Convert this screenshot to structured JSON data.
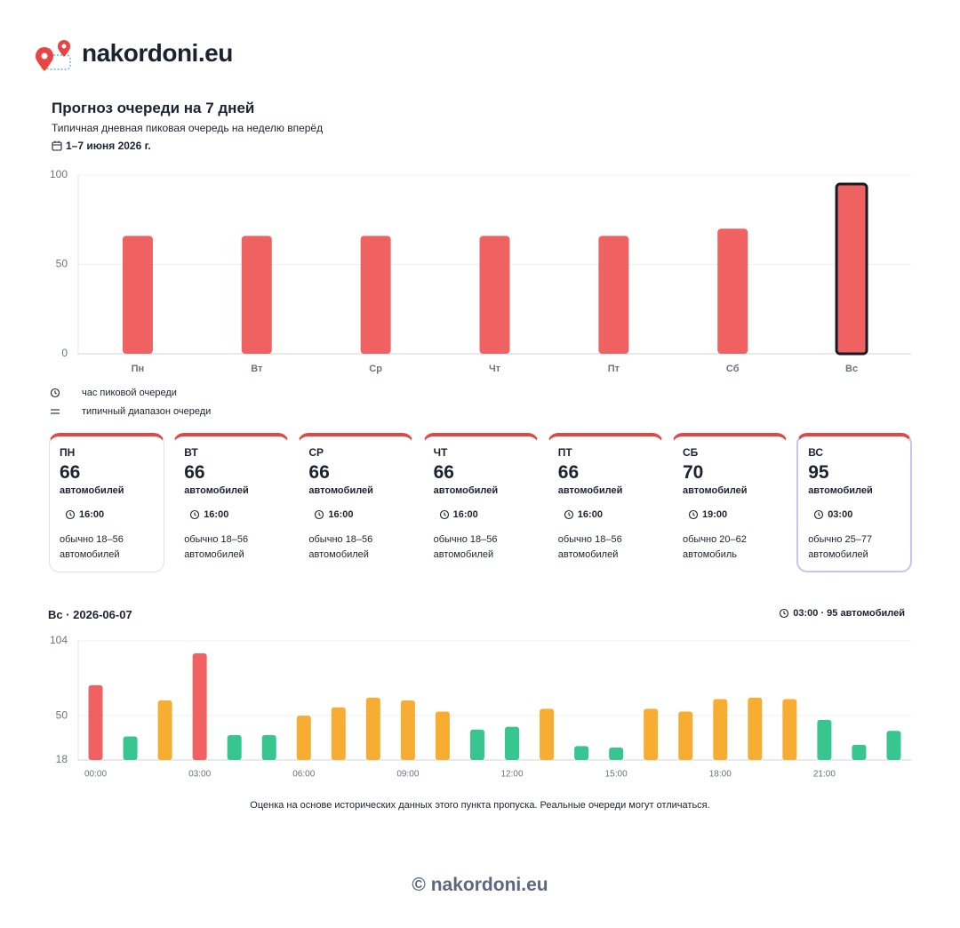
{
  "header": {
    "brand": "nakordoni.eu"
  },
  "chart_data": [
    {
      "type": "bar",
      "title": "Прогноз очереди на 7 дней",
      "subtitle": "Типичная дневная пиковая очередь на неделю вперёд",
      "date": "1–7 июня 2026 г.",
      "categories": [
        "Пн",
        "Вт",
        "Ср",
        "Чт",
        "Пт",
        "Сб",
        "Вс"
      ],
      "values": [
        66,
        66,
        66,
        66,
        66,
        70,
        95
      ],
      "color": "#f06262",
      "highlight": 6,
      "ylim": [
        0,
        100
      ],
      "yticks": [
        0,
        50,
        100
      ],
      "grid": true
    },
    {
      "type": "bar",
      "title": "Вс · 2026-06-07",
      "annotation": "03:00 · 95 автомобилей",
      "categories": [
        "00:00",
        null,
        null,
        "03:00",
        null,
        null,
        "06:00",
        null,
        null,
        "09:00",
        null,
        null,
        "12:00",
        null,
        null,
        "15:00",
        null,
        null,
        "18:00",
        null,
        null,
        "21:00",
        null,
        null
      ],
      "values": [
        72,
        35,
        61,
        95,
        36,
        36,
        50,
        56,
        63,
        61,
        53,
        40,
        42,
        55,
        28,
        27,
        55,
        53,
        62,
        63,
        62,
        47,
        29,
        39
      ],
      "colors": [
        "#f06262",
        "#37c68f",
        "#f7ad32",
        "#f06262",
        "#37c68f",
        "#37c68f",
        "#f7ad32",
        "#f7ad32",
        "#f7ad32",
        "#f7ad32",
        "#f7ad32",
        "#37c68f",
        "#37c68f",
        "#f7ad32",
        "#37c68f",
        "#37c68f",
        "#f7ad32",
        "#f7ad32",
        "#f7ad32",
        "#f7ad32",
        "#f7ad32",
        "#37c68f",
        "#37c68f",
        "#37c68f"
      ],
      "ylim": [
        18,
        104
      ],
      "yticks": [
        18,
        50,
        104
      ],
      "grid": true
    }
  ],
  "legend": {
    "peak_hour": "час пиковой очереди",
    "range": "типичный диапазон очереди"
  },
  "cards": [
    {
      "day": "ПН",
      "value": 66,
      "unit": "автомобилей",
      "time": "16:00",
      "range": "обычно 18–56 автомобилей"
    },
    {
      "day": "ВТ",
      "value": 66,
      "unit": "автомобилей",
      "time": "16:00",
      "range": "обычно 18–56 автомобилей"
    },
    {
      "day": "СР",
      "value": 66,
      "unit": "автомобилей",
      "time": "16:00",
      "range": "обычно 18–56 автомобилей"
    },
    {
      "day": "ЧТ",
      "value": 66,
      "unit": "автомобилей",
      "time": "16:00",
      "range": "обычно 18–56 автомобилей"
    },
    {
      "day": "ПТ",
      "value": 66,
      "unit": "автомобилей",
      "time": "16:00",
      "range": "обычно 18–56 автомобилей"
    },
    {
      "day": "СБ",
      "value": 70,
      "unit": "автомобилей",
      "time": "19:00",
      "range": "обычно 20–62 автомобиль"
    },
    {
      "day": "ВС",
      "value": 95,
      "unit": "автомобилей",
      "time": "03:00",
      "range": "обычно 25–77 автомобилей"
    }
  ],
  "selected_card": 6,
  "note": "Оценка на основе исторических данных этого пункта пропуска. Реальные очереди могут отличаться.",
  "footer": "© nakordoni.eu"
}
